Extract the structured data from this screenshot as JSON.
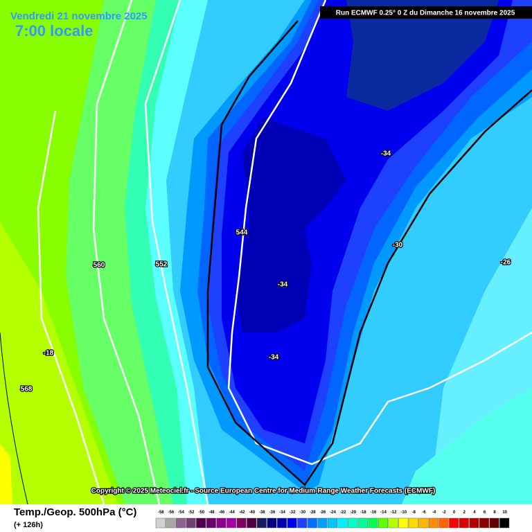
{
  "header": {
    "date": "Vendredi 21 novembre 2025",
    "time": "7:00 locale",
    "run": "Run ECMWF 0.25° 0 Z du Dimanche 16 novembre 2025"
  },
  "map_labels": [
    {
      "text": "-34"
    },
    {
      "text": "-30"
    },
    {
      "text": "-26"
    },
    {
      "text": "544"
    },
    {
      "text": "-34"
    },
    {
      "text": "560"
    },
    {
      "text": "552"
    },
    {
      "text": "-34"
    },
    {
      "text": "-18"
    },
    {
      "text": "568"
    }
  ],
  "copyright": "Copyright © 2025 Meteociel.fr - Source European Centre for Medium-Range Weather Forecasts (ECMWF)",
  "footer": {
    "title": "Temp./Geop. 500hPa (°C)",
    "lead": "(+ 126h)"
  },
  "legend": [
    {
      "label": "-58",
      "color": "#d2d2d2"
    },
    {
      "label": "-56",
      "color": "#a8a8a8"
    },
    {
      "label": "-54",
      "color": "#906090"
    },
    {
      "label": "-52",
      "color": "#704070"
    },
    {
      "label": "-50",
      "color": "#500050"
    },
    {
      "label": "-48",
      "color": "#6a006a"
    },
    {
      "label": "-46",
      "color": "#8c008c"
    },
    {
      "label": "-44",
      "color": "#a800a8"
    },
    {
      "label": "-42",
      "color": "#800060"
    },
    {
      "label": "-40",
      "color": "#500040"
    },
    {
      "label": "-38",
      "color": "#1a1a60"
    },
    {
      "label": "-36",
      "color": "#000080"
    },
    {
      "label": "-34",
      "color": "#0000b4"
    },
    {
      "label": "-32",
      "color": "#0000f0"
    },
    {
      "label": "-30",
      "color": "#1e40ff"
    },
    {
      "label": "-28",
      "color": "#0070ff"
    },
    {
      "label": "-26",
      "color": "#00a0ff"
    },
    {
      "label": "-24",
      "color": "#00c8ff"
    },
    {
      "label": "-22",
      "color": "#00f0ff"
    },
    {
      "label": "-20",
      "color": "#00ffc8"
    },
    {
      "label": "-18",
      "color": "#00ff96"
    },
    {
      "label": "-16",
      "color": "#00ff50"
    },
    {
      "label": "-14",
      "color": "#60ff00"
    },
    {
      "label": "-12",
      "color": "#b4ff00"
    },
    {
      "label": "-10",
      "color": "#ffff00"
    },
    {
      "label": "-8",
      "color": "#ffdc00"
    },
    {
      "label": "-6",
      "color": "#ffb400"
    },
    {
      "label": "-4",
      "color": "#ff8c00"
    },
    {
      "label": "-2",
      "color": "#ff6400"
    },
    {
      "label": "0",
      "color": "#ff0000"
    },
    {
      "label": "2",
      "color": "#dc0000"
    },
    {
      "label": "4",
      "color": "#b40000"
    },
    {
      "label": "6",
      "color": "#8c0000"
    },
    {
      "label": "8",
      "color": "#640000"
    },
    {
      "label": "10",
      "color": "#000000"
    }
  ]
}
